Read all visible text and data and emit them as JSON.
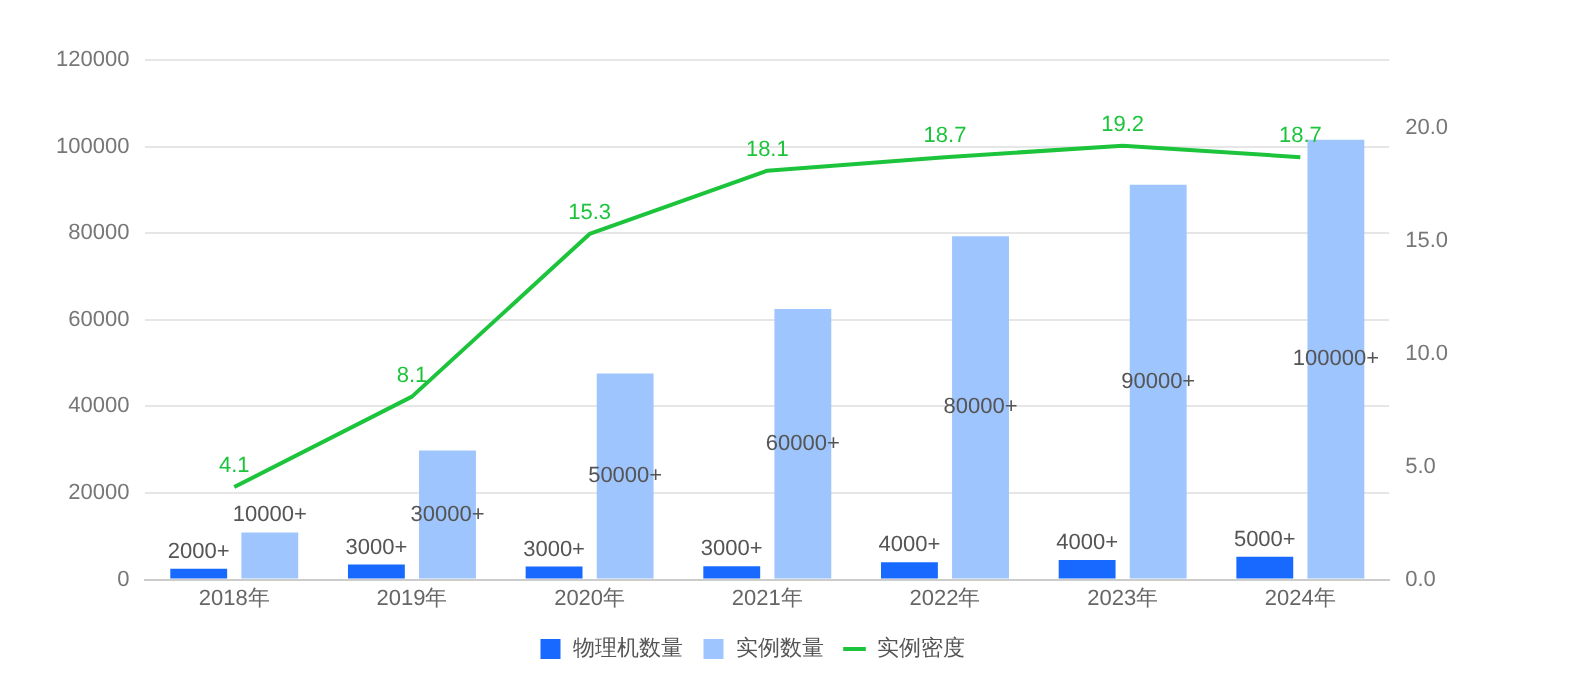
{
  "chart_data": {
    "type": "bar",
    "categories": [
      "2018年",
      "2019年",
      "2020年",
      "2021年",
      "2022年",
      "2023年",
      "2024年"
    ],
    "series": [
      {
        "name": "物理机数量",
        "color": "#1769ff",
        "values": [
          2500,
          3500,
          3000,
          3100,
          4000,
          4500,
          5300
        ],
        "value_labels": [
          "2000+",
          "3000+",
          "3000+",
          "3000+",
          "4000+",
          "4000+",
          "5000+"
        ]
      },
      {
        "name": "实例数量",
        "color": "#9ec5fd",
        "values": [
          10900,
          29800,
          47600,
          62500,
          79300,
          91200,
          101600
        ],
        "value_labels": [
          "10000+",
          "30000+",
          "50000+",
          "60000+",
          "80000+",
          "90000+",
          "100000+"
        ]
      },
      {
        "name": "实例密度",
        "type": "line",
        "axis": "y2",
        "color": "#1cc43c",
        "values": [
          4.1,
          8.1,
          15.3,
          18.1,
          18.7,
          19.2,
          18.7
        ],
        "data_labels": true,
        "marker": "none"
      }
    ],
    "ylim": [
      0,
      120000
    ],
    "yticks": [
      0,
      20000,
      40000,
      60000,
      80000,
      100000,
      120000
    ],
    "y2lim": [
      0,
      23
    ],
    "y2ticks": [
      {
        "value": 0,
        "label": "0.0"
      },
      {
        "value": 5,
        "label": "5.0"
      },
      {
        "value": 10,
        "label": "10.0"
      },
      {
        "value": 15,
        "label": "15.0"
      },
      {
        "value": 20,
        "label": "20.0"
      }
    ],
    "grid": "y",
    "legend": "bottom"
  }
}
